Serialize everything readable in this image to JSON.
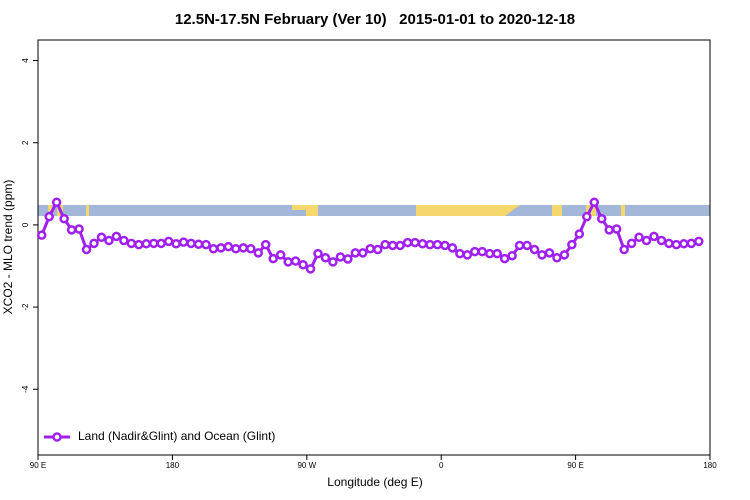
{
  "chart_data": {
    "type": "line",
    "title": "12.5N-17.5N February (Ver 10)   2015-01-01 to 2020-12-18",
    "x_label": "Longitude (deg E)",
    "y_label": "XCO2 - MLO trend (ppm)",
    "x": [
      92.5,
      97.5,
      102.5,
      107.5,
      112.5,
      117.5,
      122.5,
      127.5,
      132.5,
      137.5,
      142.5,
      147.5,
      152.5,
      157.5,
      162.5,
      167.5,
      172.5,
      177.5,
      182.5,
      187.5,
      192.5,
      197.5,
      202.5,
      207.5,
      212.5,
      217.5,
      222.5,
      227.5,
      232.5,
      237.5,
      242.5,
      247.5,
      252.5,
      257.5,
      262.5,
      267.5,
      272.5,
      277.5,
      282.5,
      287.5,
      292.5,
      297.5,
      302.5,
      307.5,
      312.5,
      317.5,
      322.5,
      327.5,
      332.5,
      337.5,
      342.5,
      347.5,
      352.5,
      357.5,
      362.5,
      367.5,
      372.5,
      377.5,
      382.5,
      387.5,
      392.5,
      397.5,
      402.5,
      407.5,
      412.5,
      417.5,
      422.5,
      427.5,
      432.5,
      437.5,
      442.5,
      447.5,
      452.5,
      457.5,
      462.5,
      467.5,
      472.5,
      477.5,
      482.5,
      487.5,
      492.5,
      497.5,
      502.5,
      507.5,
      512.5,
      517.5,
      522.5,
      527.5,
      532.5
    ],
    "series": [
      {
        "name": "Land (Nadir&Glint) and Ocean (Glint)",
        "color": "#a020f0",
        "values": [
          -0.25,
          0.2,
          0.55,
          0.15,
          -0.12,
          -0.1,
          -0.6,
          -0.45,
          -0.3,
          -0.38,
          -0.28,
          -0.38,
          -0.45,
          -0.48,
          -0.46,
          -0.45,
          -0.45,
          -0.4,
          -0.46,
          -0.42,
          -0.45,
          -0.47,
          -0.48,
          -0.58,
          -0.56,
          -0.53,
          -0.58,
          -0.56,
          -0.58,
          -0.68,
          -0.48,
          -0.82,
          -0.73,
          -0.9,
          -0.88,
          -0.97,
          -1.07,
          -0.7,
          -0.8,
          -0.9,
          -0.78,
          -0.83,
          -0.68,
          -0.68,
          -0.58,
          -0.6,
          -0.48,
          -0.5,
          -0.5,
          -0.43,
          -0.43,
          -0.46,
          -0.48,
          -0.48,
          -0.5,
          -0.56,
          -0.7,
          -0.73,
          -0.65,
          -0.65,
          -0.7,
          -0.7,
          -0.82,
          -0.75,
          -0.5,
          -0.5,
          -0.6,
          -0.73,
          -0.68,
          -0.8,
          -0.73,
          -0.48,
          -0.22,
          0.2,
          0.55,
          0.15,
          -0.12,
          -0.1,
          -0.6,
          -0.45,
          -0.3,
          -0.38,
          -0.28,
          -0.38,
          -0.45,
          -0.48,
          -0.46,
          -0.45,
          -0.4
        ]
      }
    ],
    "xlim": [
      90,
      540
    ],
    "xticks": [
      {
        "value": 90,
        "label": "90 E"
      },
      {
        "value": 180,
        "label": "180"
      },
      {
        "value": 270,
        "label": "90 W"
      },
      {
        "value": 360,
        "label": "0"
      },
      {
        "value": 450,
        "label": "90 E"
      },
      {
        "value": 540,
        "label": "180"
      }
    ],
    "ylim": [
      -5.6,
      4.5
    ],
    "yticks": [
      -4,
      -2,
      0,
      2,
      4
    ],
    "legend": "bottom-left"
  }
}
